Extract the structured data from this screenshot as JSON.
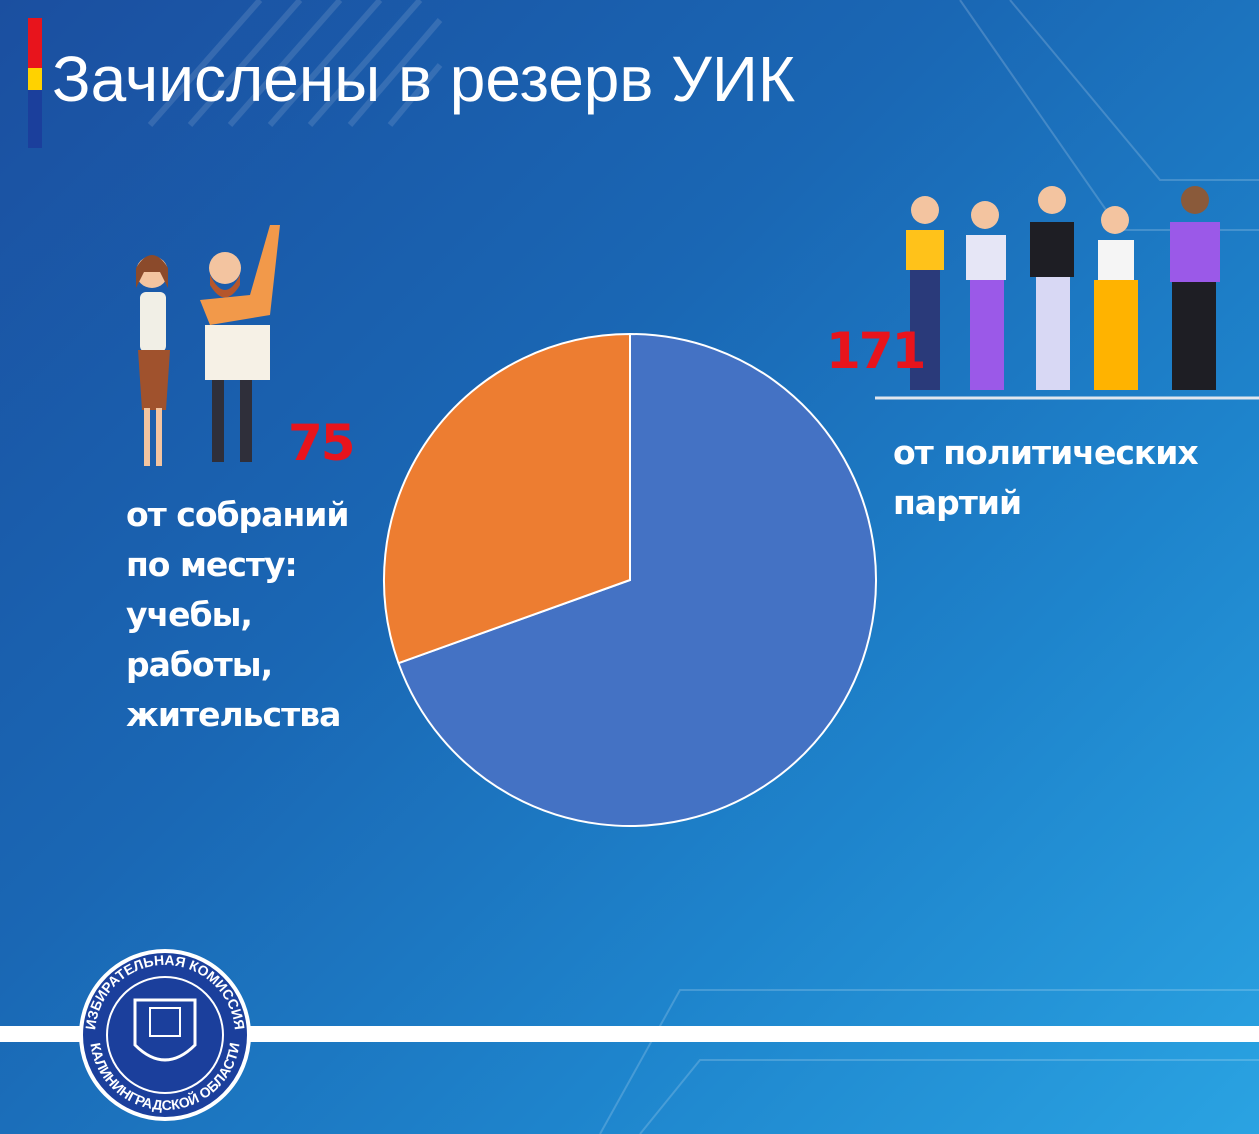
{
  "chart_data": {
    "type": "pie",
    "title": "Зачислены в резерв УИК",
    "categories": [
      "от политических\nпартий",
      "от собраний\nпо месту:\nучебы,\nработы,\nжительства"
    ],
    "values": [
      171,
      75
    ],
    "colors": [
      "#4472c4",
      "#ed7d31"
    ],
    "emblem_text": [
      "ИЗБИРАТЕЛЬНАЯ КОМИССИЯ",
      "КАЛИНИНГРАДСКОЙ ОБЛАСТИ"
    ]
  }
}
